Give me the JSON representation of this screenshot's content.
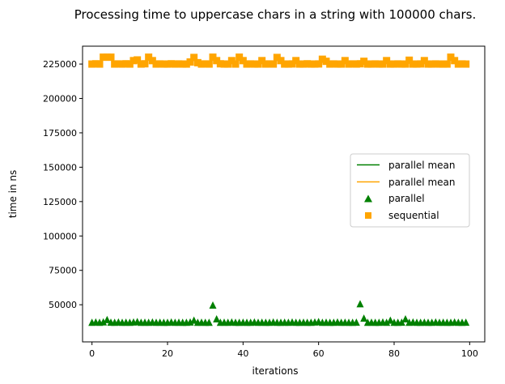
{
  "chart_data": {
    "type": "scatter",
    "title": "Processing time to uppercase chars in a string with 100000 chars.",
    "xlabel": "iterations",
    "ylabel": "time in ns",
    "xlim": [
      -2.5,
      104
    ],
    "ylim": [
      23000,
      238000
    ],
    "xticks": [
      0,
      20,
      40,
      60,
      80,
      100
    ],
    "yticks": [
      50000,
      75000,
      100000,
      125000,
      150000,
      175000,
      200000,
      225000
    ],
    "ytick_labels": [
      "50000",
      "75000",
      "100000",
      "125000",
      "150000",
      "175000",
      "200000",
      "225000"
    ],
    "xtick_labels": [
      "0",
      "20",
      "40",
      "60",
      "80",
      "100"
    ],
    "grid": false,
    "legend_position": "center-right",
    "legend": [
      {
        "label": "parallel mean",
        "kind": "line",
        "color": "#008000"
      },
      {
        "label": "parallel mean",
        "kind": "line",
        "color": "#ffa500"
      },
      {
        "label": "parallel",
        "kind": "triangle",
        "color": "#008000"
      },
      {
        "label": "sequential",
        "kind": "square",
        "color": "#ffa500"
      }
    ],
    "series": [
      {
        "name": "parallel",
        "marker": "triangle",
        "color": "#008000",
        "x": [
          0,
          1,
          2,
          3,
          4,
          5,
          6,
          7,
          8,
          9,
          10,
          11,
          12,
          13,
          14,
          15,
          16,
          17,
          18,
          19,
          20,
          21,
          22,
          23,
          24,
          25,
          26,
          27,
          28,
          29,
          30,
          31,
          32,
          33,
          34,
          35,
          36,
          37,
          38,
          39,
          40,
          41,
          42,
          43,
          44,
          45,
          46,
          47,
          48,
          49,
          50,
          51,
          52,
          53,
          54,
          55,
          56,
          57,
          58,
          59,
          60,
          61,
          62,
          63,
          64,
          65,
          66,
          67,
          68,
          69,
          70,
          71,
          72,
          73,
          74,
          75,
          76,
          77,
          78,
          79,
          80,
          81,
          82,
          83,
          84,
          85,
          86,
          87,
          88,
          89,
          90,
          91,
          92,
          93,
          94,
          95,
          96,
          97,
          98,
          99
        ],
        "values": [
          37000,
          37200,
          37000,
          37300,
          39000,
          37100,
          37000,
          37200,
          37000,
          37100,
          37000,
          37200,
          37500,
          37000,
          37100,
          37000,
          37200,
          37000,
          37100,
          37000,
          37000,
          37200,
          37000,
          37100,
          37000,
          37000,
          37200,
          38500,
          37000,
          37100,
          37000,
          37000,
          49500,
          39500,
          37000,
          37100,
          37000,
          37200,
          37000,
          37000,
          37100,
          37000,
          37000,
          37200,
          37000,
          37100,
          37000,
          37000,
          37200,
          37000,
          37000,
          37100,
          37000,
          37200,
          37000,
          37000,
          37100,
          37000,
          37000,
          37200,
          37500,
          37000,
          37100,
          37000,
          37000,
          37200,
          37000,
          37100,
          37000,
          37000,
          37100,
          50500,
          40000,
          37000,
          37100,
          37000,
          37000,
          37200,
          37000,
          38500,
          37000,
          37000,
          37100,
          39500,
          37000,
          37200,
          37000,
          37000,
          37100,
          37000,
          37000,
          37200,
          37000,
          37100,
          37000,
          37000,
          37200,
          37000,
          37000,
          37100
        ]
      },
      {
        "name": "sequential",
        "marker": "square",
        "color": "#ffa500",
        "x": [
          0,
          1,
          2,
          3,
          4,
          5,
          6,
          7,
          8,
          9,
          10,
          11,
          12,
          13,
          14,
          15,
          16,
          17,
          18,
          19,
          20,
          21,
          22,
          23,
          24,
          25,
          26,
          27,
          28,
          29,
          30,
          31,
          32,
          33,
          34,
          35,
          36,
          37,
          38,
          39,
          40,
          41,
          42,
          43,
          44,
          45,
          46,
          47,
          48,
          49,
          50,
          51,
          52,
          53,
          54,
          55,
          56,
          57,
          58,
          59,
          60,
          61,
          62,
          63,
          64,
          65,
          66,
          67,
          68,
          69,
          70,
          71,
          72,
          73,
          74,
          75,
          76,
          77,
          78,
          79,
          80,
          81,
          82,
          83,
          84,
          85,
          86,
          87,
          88,
          89,
          90,
          91,
          92,
          93,
          94,
          95,
          96,
          97,
          98,
          99
        ],
        "values": [
          225000,
          225200,
          225000,
          230000,
          230000,
          230000,
          225000,
          225100,
          225000,
          225200,
          225000,
          227500,
          228000,
          225000,
          225200,
          230000,
          227500,
          225000,
          225100,
          225000,
          225000,
          225200,
          225000,
          225100,
          225000,
          225000,
          226500,
          229800,
          226000,
          225000,
          225100,
          225000,
          230000,
          227500,
          225200,
          225000,
          225000,
          227500,
          225000,
          230000,
          227500,
          225000,
          225100,
          225000,
          225000,
          227500,
          225000,
          225100,
          225000,
          229800,
          227500,
          225000,
          225000,
          225100,
          227500,
          225000,
          225000,
          225200,
          225000,
          225000,
          225100,
          228500,
          227000,
          225000,
          225100,
          225000,
          225000,
          227500,
          225000,
          225100,
          225000,
          225200,
          227000,
          225000,
          225000,
          225100,
          225000,
          225000,
          227500,
          225000,
          225000,
          225100,
          225000,
          225000,
          227800,
          225000,
          225000,
          225100,
          227500,
          225000,
          225000,
          225100,
          225000,
          225000,
          225000,
          230000,
          227500,
          225000,
          225100,
          225000
        ]
      }
    ]
  }
}
